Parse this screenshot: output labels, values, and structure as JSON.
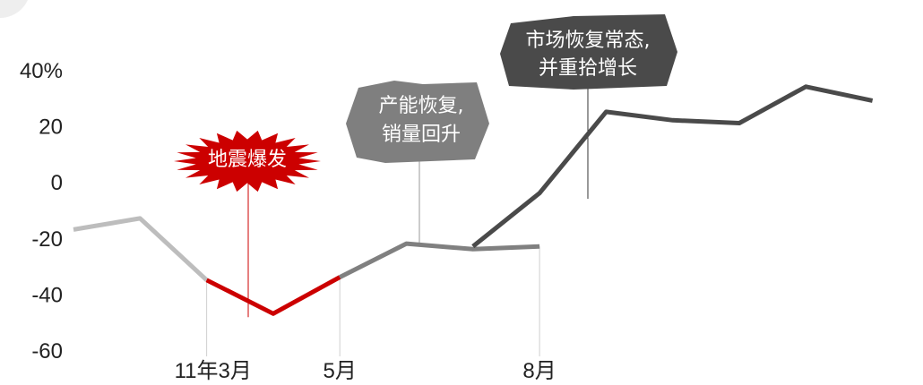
{
  "chart_data": {
    "type": "line",
    "title": "",
    "xlabel": "",
    "ylabel": "",
    "ylim": [
      -60,
      40
    ],
    "y_ticks": [
      "40%",
      "20",
      "0",
      "-20",
      "-40",
      "-60"
    ],
    "x_ticks": [
      "11年3月",
      "5月",
      "8月"
    ],
    "grid": false,
    "series": [
      {
        "segment": "before",
        "color": "#bdbdbd",
        "values": [
          -17,
          -13,
          -35
        ]
      },
      {
        "segment": "earthquake",
        "color": "#cc0000",
        "values": [
          -35,
          -47,
          -34
        ]
      },
      {
        "segment": "recovery",
        "color": "#808080",
        "values": [
          -34,
          -22,
          -24,
          -23
        ]
      },
      {
        "segment": "growth",
        "color": "#4a4a4a",
        "values": [
          -23,
          -4,
          25,
          22,
          21,
          34,
          29
        ]
      }
    ],
    "annotations": [
      {
        "id": "earthquake",
        "text": "地震爆发",
        "color": "#cc0000"
      },
      {
        "id": "recovery",
        "lines": [
          "产能恢复,",
          "销量回升"
        ],
        "color": "#7f7f7f"
      },
      {
        "id": "normal",
        "lines": [
          "市场恢复常态,",
          "并重拾增长"
        ],
        "color": "#4a4a4a"
      }
    ]
  }
}
